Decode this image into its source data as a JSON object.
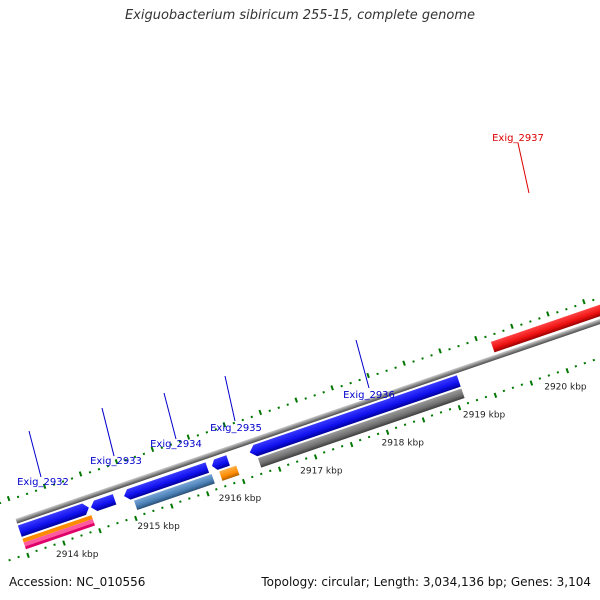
{
  "title": "Exiguobacterium sibiricum 255-15, complete genome",
  "footer": {
    "accession": "Accession: NC_010556",
    "summary": "Topology: circular; Length: 3,034,136 bp; Genes: 3,104"
  },
  "scale_labels": [
    "2914 kbp",
    "2915 kbp",
    "2916 kbp",
    "2917 kbp",
    "2918 kbp",
    "2919 kbp",
    "2920 kbp"
  ],
  "genes": [
    {
      "id": "Exig_2932",
      "color": "#0000cc"
    },
    {
      "id": "Exig_2933",
      "color": "#0000cc"
    },
    {
      "id": "Exig_2934",
      "color": "#0000cc"
    },
    {
      "id": "Exig_2935",
      "color": "#0000cc"
    },
    {
      "id": "Exig_2936",
      "color": "#0000cc"
    },
    {
      "id": "Exig_2937",
      "color": "#dd0000"
    }
  ],
  "colors": {
    "forward_gene": "#1010ee",
    "highlight_gene": "#ee1111",
    "steel_gene": "#4a7fb5",
    "orange_gene": "#ff8c00",
    "grey_gene": "#707070",
    "backbone": "#8a8a8a",
    "tick": "#007700"
  }
}
